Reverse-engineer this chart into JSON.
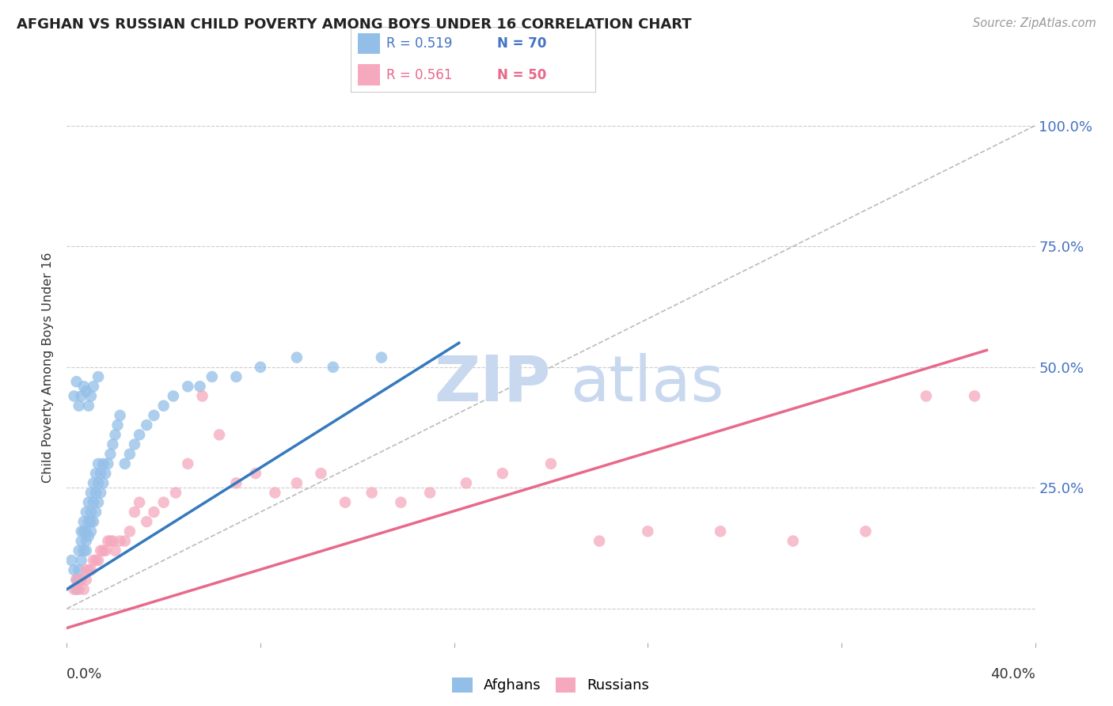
{
  "title": "AFGHAN VS RUSSIAN CHILD POVERTY AMONG BOYS UNDER 16 CORRELATION CHART",
  "source": "Source: ZipAtlas.com",
  "ylabel": "Child Poverty Among Boys Under 16",
  "yticks": [
    0.0,
    0.25,
    0.5,
    0.75,
    1.0
  ],
  "ytick_labels": [
    "",
    "25.0%",
    "50.0%",
    "75.0%",
    "100.0%"
  ],
  "legend_afghan_R": "0.519",
  "legend_afghan_N": "70",
  "legend_russian_R": "0.561",
  "legend_russian_N": "50",
  "afghan_color": "#92BEE8",
  "russian_color": "#F5A8BE",
  "afghan_line_color": "#3579BE",
  "russian_line_color": "#E86A8A",
  "diagonal_color": "#BBBBBB",
  "watermark_zip": "ZIP",
  "watermark_atlas": "atlas",
  "watermark_color": "#C8D8EE",
  "background_color": "#FFFFFF",
  "afghan_x": [
    0.002,
    0.003,
    0.004,
    0.004,
    0.005,
    0.005,
    0.005,
    0.006,
    0.006,
    0.006,
    0.007,
    0.007,
    0.007,
    0.008,
    0.008,
    0.008,
    0.008,
    0.009,
    0.009,
    0.009,
    0.01,
    0.01,
    0.01,
    0.01,
    0.011,
    0.011,
    0.011,
    0.012,
    0.012,
    0.012,
    0.013,
    0.013,
    0.013,
    0.014,
    0.014,
    0.015,
    0.015,
    0.016,
    0.017,
    0.018,
    0.019,
    0.02,
    0.021,
    0.022,
    0.024,
    0.026,
    0.028,
    0.03,
    0.033,
    0.036,
    0.04,
    0.044,
    0.05,
    0.055,
    0.06,
    0.07,
    0.08,
    0.095,
    0.11,
    0.13,
    0.003,
    0.004,
    0.005,
    0.006,
    0.007,
    0.008,
    0.009,
    0.01,
    0.011,
    0.013
  ],
  "afghan_y": [
    0.1,
    0.08,
    0.06,
    0.04,
    0.06,
    0.08,
    0.12,
    0.1,
    0.14,
    0.16,
    0.12,
    0.16,
    0.18,
    0.12,
    0.14,
    0.16,
    0.2,
    0.15,
    0.18,
    0.22,
    0.16,
    0.18,
    0.2,
    0.24,
    0.18,
    0.22,
    0.26,
    0.2,
    0.24,
    0.28,
    0.22,
    0.26,
    0.3,
    0.24,
    0.28,
    0.26,
    0.3,
    0.28,
    0.3,
    0.32,
    0.34,
    0.36,
    0.38,
    0.4,
    0.3,
    0.32,
    0.34,
    0.36,
    0.38,
    0.4,
    0.42,
    0.44,
    0.46,
    0.46,
    0.48,
    0.48,
    0.5,
    0.52,
    0.5,
    0.52,
    0.44,
    0.47,
    0.42,
    0.44,
    0.46,
    0.45,
    0.42,
    0.44,
    0.46,
    0.48
  ],
  "russian_x": [
    0.003,
    0.004,
    0.005,
    0.006,
    0.007,
    0.008,
    0.008,
    0.009,
    0.01,
    0.011,
    0.012,
    0.013,
    0.014,
    0.015,
    0.016,
    0.017,
    0.018,
    0.019,
    0.02,
    0.022,
    0.024,
    0.026,
    0.028,
    0.03,
    0.033,
    0.036,
    0.04,
    0.045,
    0.05,
    0.056,
    0.063,
    0.07,
    0.078,
    0.086,
    0.095,
    0.105,
    0.115,
    0.126,
    0.138,
    0.15,
    0.165,
    0.18,
    0.2,
    0.22,
    0.24,
    0.27,
    0.3,
    0.33,
    0.355,
    0.375
  ],
  "russian_y": [
    0.04,
    0.06,
    0.04,
    0.06,
    0.04,
    0.06,
    0.08,
    0.08,
    0.08,
    0.1,
    0.1,
    0.1,
    0.12,
    0.12,
    0.12,
    0.14,
    0.14,
    0.14,
    0.12,
    0.14,
    0.14,
    0.16,
    0.2,
    0.22,
    0.18,
    0.2,
    0.22,
    0.24,
    0.3,
    0.44,
    0.36,
    0.26,
    0.28,
    0.24,
    0.26,
    0.28,
    0.22,
    0.24,
    0.22,
    0.24,
    0.26,
    0.28,
    0.3,
    0.14,
    0.16,
    0.16,
    0.14,
    0.16,
    0.44,
    0.44
  ],
  "afghan_line_x": [
    0.0,
    0.162
  ],
  "afghan_line_y": [
    0.04,
    0.55
  ],
  "russian_line_x": [
    0.0,
    0.38
  ],
  "russian_line_y": [
    -0.04,
    0.535
  ],
  "xlim": [
    0.0,
    0.4
  ],
  "ylim": [
    -0.07,
    1.07
  ],
  "xtick_positions": [
    0.0,
    0.08,
    0.16,
    0.24,
    0.32,
    0.4
  ]
}
